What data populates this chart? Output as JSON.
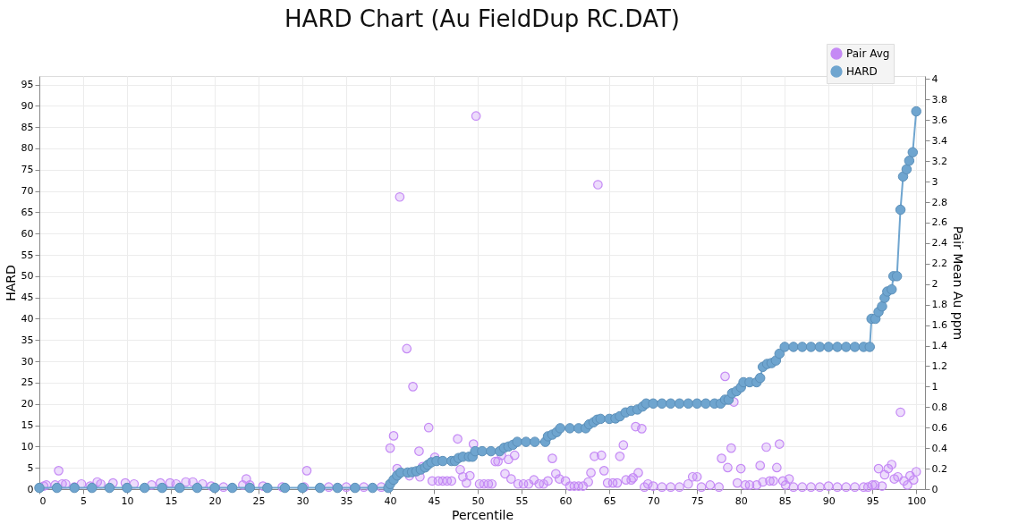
{
  "chart_data": {
    "type": "line",
    "title": "HARD Chart (Au FieldDup RC.DAT)",
    "xlabel": "Percentile",
    "ylabel": "HARD",
    "y2label": "Pair Mean Au ppm",
    "xlim": [
      0,
      101
    ],
    "xticks": [
      0,
      5,
      10,
      15,
      20,
      25,
      30,
      35,
      40,
      45,
      50,
      55,
      60,
      65,
      70,
      75,
      80,
      85,
      90,
      95,
      100
    ],
    "ylim": [
      0,
      97
    ],
    "yticks": [
      0,
      5,
      10,
      15,
      20,
      25,
      30,
      35,
      40,
      45,
      50,
      55,
      60,
      65,
      70,
      75,
      80,
      85,
      90,
      95
    ],
    "y2lim": [
      0,
      4.03
    ],
    "y2ticks": [
      0,
      0.2,
      0.4,
      0.6,
      0.8,
      1,
      1.2,
      1.4,
      1.6,
      1.8,
      2,
      2.2,
      2.4,
      2.6,
      2.8,
      3,
      3.2,
      3.4,
      3.6,
      3.8,
      4
    ],
    "grid": true,
    "legend": "top right",
    "marker": "circle",
    "line_style": "solid",
    "series": [
      {
        "name": "Pair Avg",
        "type": "scatter",
        "axis": "y2",
        "color": "#c58af5",
        "x": [
          0.5,
          0.8,
          1.8,
          2.2,
          2.6,
          3,
          4,
          4.8,
          5.8,
          6.6,
          7,
          8.4,
          9.8,
          10.8,
          12.8,
          13.8,
          14.9,
          15.6,
          16.7,
          17.5,
          18.6,
          19.6,
          21,
          23.2,
          23.6,
          24,
          25.5,
          27.7,
          30.2,
          30.5,
          33,
          35,
          37,
          39,
          40,
          40.4,
          40.8,
          41.1,
          41.9,
          42.2,
          42.6,
          43.3,
          43.4,
          43.7,
          44.4,
          44.8,
          45.1,
          45.5,
          46,
          46.5,
          47,
          47.7,
          48,
          48.3,
          48.7,
          49.1,
          49.5,
          49.8,
          50.2,
          50.7,
          51.2,
          51.6,
          52,
          52.3,
          52.7,
          53.1,
          53.5,
          53.8,
          54.2,
          54.6,
          55.2,
          55.8,
          56.4,
          57,
          57.5,
          58,
          58.5,
          58.9,
          59.3,
          60,
          60.5,
          61,
          61.5,
          62,
          62.6,
          62.9,
          63.3,
          63.7,
          64.1,
          64.4,
          64.8,
          65.4,
          65.9,
          66.2,
          66.6,
          66.9,
          67.5,
          67.7,
          68,
          68.3,
          68.7,
          69,
          69.4,
          70,
          71,
          72,
          73,
          74,
          74.5,
          75,
          75.5,
          76.5,
          77.5,
          77.8,
          78.2,
          78.5,
          78.9,
          79.2,
          79.6,
          80,
          80.5,
          81,
          81.8,
          82.2,
          82.5,
          82.9,
          83.3,
          83.7,
          84.1,
          84.4,
          84.8,
          85.1,
          85.5,
          86,
          87,
          88,
          89,
          90,
          91,
          92,
          93,
          94,
          94.5,
          95,
          95.3,
          95.7,
          96.1,
          96.4,
          96.8,
          97.2,
          97.5,
          97.9,
          98.2,
          98.6,
          99,
          99.3,
          99.7,
          100
        ],
        "values": [
          0.03,
          0.04,
          0.04,
          0.18,
          0.05,
          0.05,
          0.02,
          0.05,
          0.03,
          0.07,
          0.05,
          0.06,
          0.06,
          0.05,
          0.04,
          0.06,
          0.06,
          0.05,
          0.07,
          0.07,
          0.05,
          0.03,
          0.02,
          0.04,
          0.1,
          0.04,
          0.03,
          0.02,
          0.02,
          0.18,
          0.02,
          0.02,
          0.02,
          0.02,
          0.4,
          0.52,
          0.2,
          2.85,
          1.37,
          0.13,
          1.0,
          0.37,
          0.12,
          0.22,
          0.6,
          0.08,
          0.31,
          0.08,
          0.08,
          0.08,
          0.08,
          0.49,
          0.19,
          0.12,
          0.06,
          0.13,
          0.44,
          3.64,
          0.05,
          0.05,
          0.05,
          0.05,
          0.27,
          0.27,
          0.33,
          0.15,
          0.29,
          0.1,
          0.33,
          0.05,
          0.05,
          0.05,
          0.09,
          0.05,
          0.05,
          0.08,
          0.3,
          0.15,
          0.1,
          0.08,
          0.03,
          0.03,
          0.03,
          0.03,
          0.07,
          0.16,
          0.32,
          2.97,
          0.33,
          0.18,
          0.06,
          0.06,
          0.06,
          0.32,
          0.43,
          0.09,
          0.09,
          0.11,
          0.61,
          0.16,
          0.59,
          0.02,
          0.05,
          0.03,
          0.02,
          0.02,
          0.02,
          0.05,
          0.12,
          0.12,
          0.02,
          0.04,
          0.02,
          0.3,
          1.1,
          0.21,
          0.4,
          0.85,
          0.06,
          0.2,
          0.04,
          0.04,
          0.04,
          0.23,
          0.07,
          0.41,
          0.08,
          0.08,
          0.21,
          0.44,
          0.08,
          0.04,
          0.1,
          0.02,
          0.02,
          0.02,
          0.02,
          0.03,
          0.02,
          0.02,
          0.02,
          0.02,
          0.02,
          0.04,
          0.04,
          0.2,
          0.03,
          0.14,
          0.2,
          0.24,
          0.1,
          0.12,
          0.75,
          0.08,
          0.04,
          0.13,
          0.09,
          0.17
        ]
      },
      {
        "name": "HARD",
        "color": "#6fa5cf",
        "x": [
          0,
          2,
          4,
          6,
          8,
          10,
          12,
          14,
          16,
          18,
          20,
          22,
          24,
          26,
          28,
          30,
          32,
          34,
          36,
          38,
          39.8,
          40,
          40.4,
          40.8,
          41.2,
          42,
          42.5,
          43,
          43.5,
          44,
          44.3,
          44.7,
          45.3,
          46,
          47,
          47.4,
          47.8,
          48.3,
          49,
          49.4,
          49.7,
          50.5,
          51.5,
          52.5,
          53,
          53.5,
          54,
          54.5,
          55.5,
          56.5,
          57.7,
          58,
          58.5,
          59,
          59.4,
          60.5,
          61.5,
          62.3,
          62.7,
          63.2,
          63.6,
          64,
          65,
          65.7,
          66.2,
          66.85,
          67.5,
          68.2,
          68.8,
          69.2,
          70,
          71,
          72,
          73,
          74,
          75,
          76,
          77,
          77.7,
          78.2,
          78.6,
          79,
          79.5,
          80,
          80.3,
          81,
          81.8,
          82.2,
          82.5,
          83,
          83.5,
          84,
          84.4,
          85,
          86,
          87,
          88,
          89,
          90,
          91,
          92,
          93,
          94,
          94.7,
          94.9,
          95.35,
          95.7,
          96.1,
          96.4,
          96.7,
          97.2,
          97.4,
          97.8,
          98.2,
          98.5,
          98.9,
          99.2,
          99.6,
          100
        ],
        "values": [
          0.3,
          0.3,
          0.3,
          0.3,
          0.3,
          0.3,
          0.3,
          0.3,
          0.3,
          0.3,
          0.3,
          0.3,
          0.3,
          0.3,
          0.3,
          0.3,
          0.3,
          0.3,
          0.3,
          0.3,
          0.3,
          1.2,
          2.2,
          3.2,
          3.9,
          3.9,
          4.0,
          4.2,
          4.6,
          5.1,
          5.7,
          6.3,
          6.6,
          6.6,
          6.6,
          6.6,
          7.3,
          7.6,
          7.6,
          7.6,
          8.9,
          8.9,
          8.9,
          8.9,
          9.7,
          10,
          10.4,
          11.1,
          11.1,
          11.1,
          11.1,
          12.4,
          12.8,
          13.4,
          14.3,
          14.3,
          14.3,
          14.3,
          15.2,
          15.7,
          16.3,
          16.5,
          16.5,
          16.6,
          17.1,
          18,
          18.4,
          18.7,
          19.4,
          20.1,
          20.1,
          20.1,
          20.1,
          20.1,
          20.1,
          20.1,
          20.1,
          20.1,
          20.1,
          21,
          21,
          22.5,
          23,
          23.9,
          25.1,
          25.1,
          25.1,
          26.1,
          28.7,
          29.4,
          29.6,
          30.2,
          31.8,
          33.4,
          33.4,
          33.4,
          33.4,
          33.4,
          33.4,
          33.4,
          33.4,
          33.4,
          33.4,
          33.4,
          40,
          40,
          41.6,
          42.9,
          44.9,
          46.4,
          46.9,
          50,
          50,
          65.6,
          73.4,
          75.1,
          77.1,
          79.1,
          88.7
        ]
      }
    ]
  }
}
